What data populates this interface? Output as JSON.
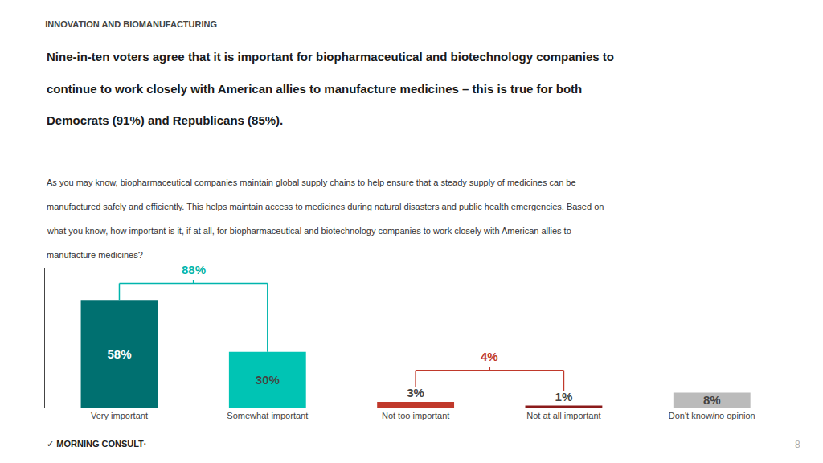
{
  "chart_data": {
    "type": "bar",
    "title": "INNOVATION AND BIOMANUFACTURING",
    "subtitle": [
      "Nine-in-ten voters agree that it is important for biopharmaceutical and biotechnology companies to",
      "continue to work closely with American allies to manufacture medicines – this is true for both",
      "Democrats (91%) and Republicans (85%)."
    ],
    "body": [
      "As you may know, biopharmaceutical companies maintain global supply chains to help ensure that a steady supply of medicines can be",
      "manufactured safely and efficiently. This helps maintain access to medicines during natural disasters and public health emergencies. Based on",
      "what you know, how important is it, if at all, for biopharmaceutical and biotechnology companies to work closely with American allies to",
      "manufacture medicines?"
    ],
    "categories": [
      "Very important",
      "Somewhat important",
      "Not too important",
      "Not at all important",
      "Don't know/no opinion"
    ],
    "values": [
      58,
      30,
      3,
      1,
      8
    ],
    "value_labels": [
      "58%",
      "30%",
      "3%",
      "1%",
      "8%"
    ],
    "colors": [
      "#007070",
      "#00C4B4",
      "#C0392B",
      "#8B1A1A",
      "#BBBBBB"
    ],
    "data_labels": true,
    "ylim": [
      0,
      75
    ],
    "grid": false,
    "tick_labels": "x",
    "annotations": [
      {
        "text": "88%",
        "categories": [
          "Very important",
          "Somewhat important"
        ],
        "color": "#00B5AD"
      },
      {
        "text": "4%",
        "categories": [
          "Not too important",
          "Not at all important"
        ],
        "color": "#C0392B"
      }
    ],
    "page_number": "8",
    "source": "✓ MORNING CONSULT·"
  }
}
